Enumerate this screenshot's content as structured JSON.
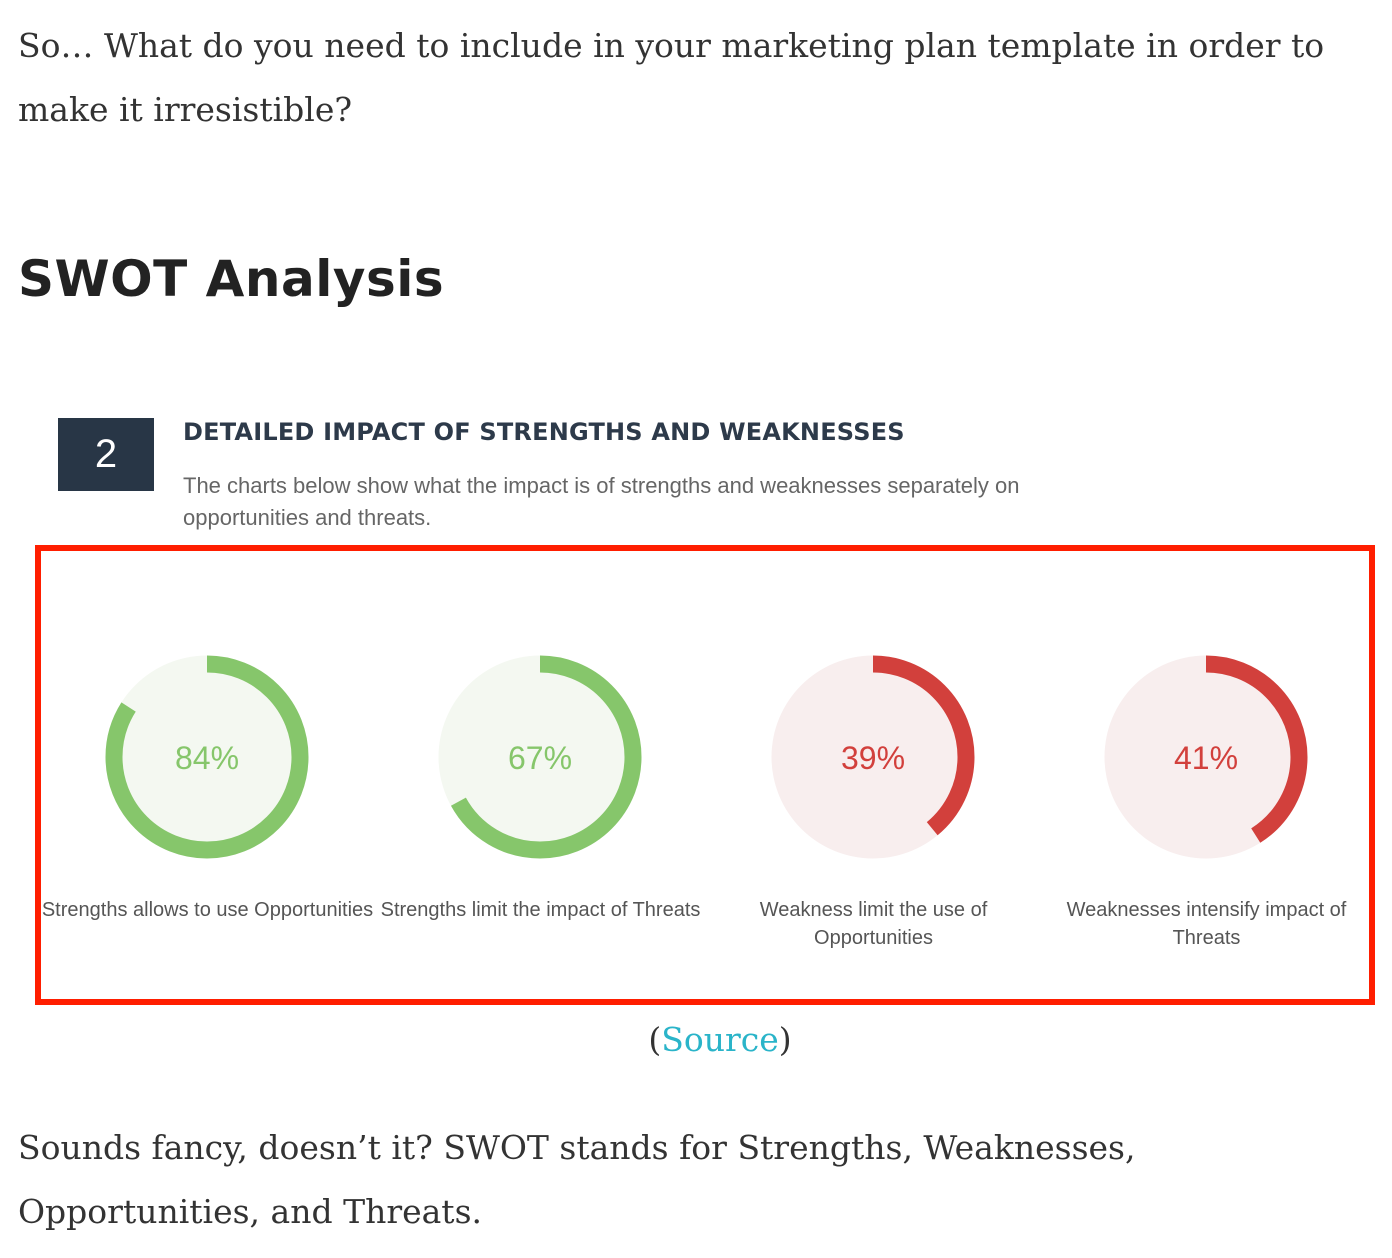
{
  "intro_text": "So… What do you need to include in your marketing plan template in order to make it irresistible?",
  "section_heading": "SWOT Analysis",
  "figure": {
    "step_number": "2",
    "title": "DETAILED IMPACT OF STRENGTHS AND WEAKNESSES",
    "subtitle": "The charts below show what the impact is of strengths and weaknesses separately on opportunities and threats."
  },
  "colors": {
    "green": "#86c66b",
    "red": "#d2403c",
    "highlight_border": "#ff1e00",
    "link": "#2ab4c9"
  },
  "chart_data": {
    "type": "donut",
    "items": [
      {
        "value": 84,
        "value_label": "84%",
        "label": "Strengths allows to use Opportunities",
        "color": "#86c66b"
      },
      {
        "value": 67,
        "value_label": "67%",
        "label": "Strengths limit the impact of Threats",
        "color": "#86c66b"
      },
      {
        "value": 39,
        "value_label": "39%",
        "label": "Weakness limit the use of Opportunities",
        "color": "#d2403c"
      },
      {
        "value": 41,
        "value_label": "41%",
        "label": "Weaknesses intensify impact of Threats",
        "color": "#d2403c"
      }
    ]
  },
  "source": {
    "open": "(",
    "link_text": "Source",
    "close": ")"
  },
  "outro_text": "Sounds fancy, doesn’t it? SWOT stands for Strengths, Weaknesses, Opportunities, and Threats."
}
